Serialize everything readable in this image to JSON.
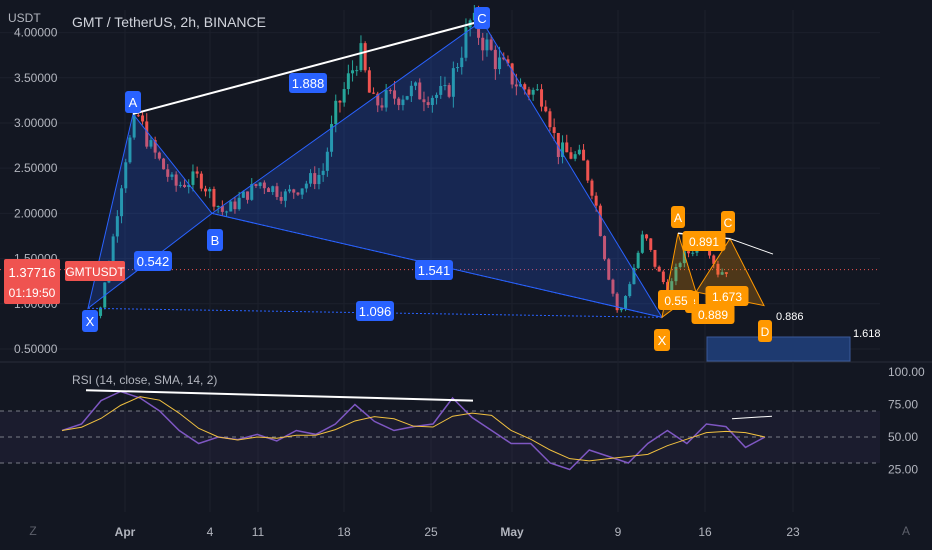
{
  "title": "GMT / TetherUS, 2h, BINANCE",
  "currency": "USDT",
  "colors": {
    "background": "#131722",
    "up_candle": "#26a69a",
    "down_candle": "#ef5350",
    "pattern_blue": "#2962ff",
    "pattern_orange": "#ff9800",
    "rsi_line": "#7e57c2",
    "sma_line": "#f0c040",
    "text": "#b2b5be"
  },
  "price_axis": {
    "ticks": [
      "4.00000",
      "3.50000",
      "3.00000",
      "2.50000",
      "2.00000",
      "1.50000",
      "1.00000",
      "0.50000"
    ]
  },
  "date_axis": {
    "labels": [
      "Apr",
      "4",
      "11",
      "18",
      "25",
      "May",
      "9",
      "16",
      "23"
    ]
  },
  "current_price": {
    "symbol": "GMTUSDT",
    "value": "1.37716",
    "countdown": "01:19:50"
  },
  "big_pattern": {
    "points": [
      {
        "label": "X",
        "price": 0.95
      },
      {
        "label": "A",
        "price": 3.1
      },
      {
        "label": "B",
        "price": 2.0
      },
      {
        "label": "C",
        "price": 4.13
      },
      {
        "label": "X",
        "price": 0.85
      }
    ],
    "ratios": [
      "0.542",
      "1.888",
      "1.541",
      "1.096"
    ]
  },
  "small_pattern": {
    "points": [
      {
        "label": "X",
        "price": 0.85
      },
      {
        "label": "A",
        "price": 1.78
      },
      {
        "label": "B",
        "price": 1.13
      },
      {
        "label": "C",
        "price": 1.72
      },
      {
        "label": "D",
        "price": 0.98
      }
    ],
    "ratios": [
      "0.55",
      "0.891",
      "1.673",
      "0.889"
    ]
  },
  "fib_levels": [
    "0.886",
    "1.618"
  ],
  "rsi": {
    "label": "RSI (14, close, SMA, 14, 2)",
    "ticks": [
      "100.00",
      "75.00",
      "50.00",
      "25.00"
    ]
  },
  "corner_buttons": [
    "Z",
    "A"
  ],
  "chart_data": {
    "type": "candlestick",
    "title": "GMT / TetherUS, 2h, BINANCE",
    "ylabel": "USDT",
    "ylim": [
      0.4,
      4.25
    ],
    "x_labels": [
      "Apr",
      "4",
      "11",
      "18",
      "25",
      "May",
      "9",
      "16",
      "23"
    ],
    "price_path": [
      {
        "date": "Mar 29",
        "price": 0.78
      },
      {
        "date": "Mar 30",
        "price": 0.95
      },
      {
        "date": "Mar 31",
        "price": 1.7
      },
      {
        "date": "Apr 1",
        "price": 2.6
      },
      {
        "date": "Apr 2",
        "price": 3.1
      },
      {
        "date": "Apr 3",
        "price": 2.75
      },
      {
        "date": "Apr 5",
        "price": 2.3
      },
      {
        "date": "Apr 7",
        "price": 2.4
      },
      {
        "date": "Apr 9",
        "price": 2.0
      },
      {
        "date": "Apr 12",
        "price": 2.35
      },
      {
        "date": "Apr 14",
        "price": 2.2
      },
      {
        "date": "Apr 17",
        "price": 2.45
      },
      {
        "date": "Apr 18",
        "price": 3.1
      },
      {
        "date": "Apr 20",
        "price": 3.8
      },
      {
        "date": "Apr 21",
        "price": 3.2
      },
      {
        "date": "Apr 24",
        "price": 3.35
      },
      {
        "date": "Apr 27",
        "price": 3.3
      },
      {
        "date": "Apr 29",
        "price": 4.13
      },
      {
        "date": "May 1",
        "price": 3.7
      },
      {
        "date": "May 3",
        "price": 3.4
      },
      {
        "date": "May 5",
        "price": 3.3
      },
      {
        "date": "May 6",
        "price": 2.7
      },
      {
        "date": "May 8",
        "price": 2.6
      },
      {
        "date": "May 9",
        "price": 2.2
      },
      {
        "date": "May 10",
        "price": 1.4
      },
      {
        "date": "May 11",
        "price": 0.85
      },
      {
        "date": "May 12",
        "price": 1.3
      },
      {
        "date": "May 13",
        "price": 1.78
      },
      {
        "date": "May 14",
        "price": 1.4
      },
      {
        "date": "May 15",
        "price": 1.13
      },
      {
        "date": "May 16",
        "price": 1.5
      },
      {
        "date": "May 18",
        "price": 1.72
      },
      {
        "date": "May 19",
        "price": 1.35
      },
      {
        "date": "May 20",
        "price": 1.38
      }
    ],
    "rsi": {
      "ylim": [
        0,
        100
      ],
      "levels": [
        70,
        50,
        30
      ],
      "values": [
        55,
        60,
        78,
        85,
        80,
        70,
        55,
        45,
        50,
        48,
        52,
        47,
        55,
        52,
        60,
        75,
        62,
        55,
        58,
        60,
        80,
        65,
        55,
        45,
        45,
        30,
        25,
        40,
        35,
        30,
        45,
        55,
        45,
        60,
        58,
        42,
        50
      ]
    }
  }
}
